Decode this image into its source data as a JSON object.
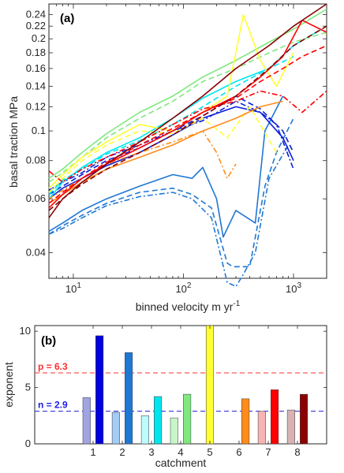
{
  "chart_data": [
    {
      "panel": "(a)",
      "type": "line",
      "xlabel": "binned velocity m yr",
      "xlabel_sup": "-1",
      "ylabel": "basal traction MPa",
      "x_scale": "log",
      "y_scale": "log",
      "xlim": [
        6,
        2000
      ],
      "ylim": [
        0.033,
        0.26
      ],
      "x_ticks": [
        10,
        100,
        1000
      ],
      "x_tick_labels": [
        {
          "base": "10",
          "exp": "1"
        },
        {
          "base": "10",
          "exp": "2"
        },
        {
          "base": "10",
          "exp": "3"
        }
      ],
      "y_ticks": [
        0.04,
        0.06,
        0.08,
        0.1,
        0.12,
        0.14,
        0.16,
        0.18,
        0.2,
        0.22,
        0.24
      ],
      "y_tick_labels": [
        "0.04",
        "0.06",
        "0.08",
        "0.1",
        "0.12",
        "0.14",
        "0.16",
        "0.18",
        "0.2",
        "0.22",
        "0.24"
      ],
      "grid": false,
      "series": [
        {
          "color": "#1f77d4",
          "style": "solid",
          "x": [
            6,
            8,
            12,
            20,
            40,
            80,
            120,
            150,
            200,
            230,
            300,
            450,
            550,
            800
          ],
          "y": [
            0.047,
            0.05,
            0.055,
            0.06,
            0.066,
            0.072,
            0.07,
            0.076,
            0.06,
            0.045,
            0.055,
            0.05,
            0.1,
            0.13
          ]
        },
        {
          "color": "#1f77d4",
          "style": "dashed",
          "x": [
            6,
            8,
            12,
            20,
            40,
            80,
            120,
            180,
            250,
            280,
            330,
            400,
            550,
            700,
            1000
          ],
          "y": [
            0.046,
            0.049,
            0.053,
            0.058,
            0.063,
            0.065,
            0.062,
            0.056,
            0.037,
            0.036,
            0.036,
            0.036,
            0.066,
            0.085,
            0.11
          ]
        },
        {
          "color": "#1f77d4",
          "style": "dashdot",
          "x": [
            6,
            8,
            12,
            20,
            40,
            80,
            120,
            180,
            250,
            300,
            350,
            450,
            600,
            900
          ],
          "y": [
            0.046,
            0.048,
            0.052,
            0.057,
            0.061,
            0.063,
            0.06,
            0.052,
            0.032,
            0.031,
            0.034,
            0.04,
            0.07,
            0.09
          ]
        },
        {
          "color": "#0a1fd9",
          "style": "solid",
          "x": [
            6,
            8,
            12,
            20,
            40,
            80,
            150,
            300,
            500,
            800,
            1000
          ],
          "y": [
            0.06,
            0.065,
            0.07,
            0.077,
            0.085,
            0.097,
            0.11,
            0.12,
            0.115,
            0.095,
            0.08
          ]
        },
        {
          "color": "#0a1fd9",
          "style": "dashed",
          "x": [
            6,
            8,
            12,
            20,
            40,
            80,
            150,
            300,
            500,
            800,
            1000
          ],
          "y": [
            0.062,
            0.066,
            0.072,
            0.08,
            0.088,
            0.1,
            0.112,
            0.13,
            0.118,
            0.1,
            0.085
          ]
        },
        {
          "color": "#0a1fd9",
          "style": "dashdot",
          "x": [
            6,
            8,
            12,
            20,
            40,
            80,
            150,
            300,
            500,
            700,
            1000
          ],
          "y": [
            0.064,
            0.068,
            0.073,
            0.082,
            0.09,
            0.1,
            0.108,
            0.125,
            0.115,
            0.105,
            0.075
          ]
        },
        {
          "color": "#00e5ee",
          "style": "solid",
          "x": [
            6,
            8,
            12,
            20,
            40,
            80,
            150,
            300,
            600,
            1000,
            1800
          ],
          "y": [
            0.06,
            0.068,
            0.076,
            0.085,
            0.095,
            0.11,
            0.128,
            0.145,
            0.16,
            0.19,
            0.215
          ]
        },
        {
          "color": "#00e5ee",
          "style": "dashed",
          "x": [
            6,
            8,
            12,
            20,
            40,
            80,
            150,
            300,
            600,
            1000
          ],
          "y": [
            0.062,
            0.069,
            0.075,
            0.084,
            0.093,
            0.105,
            0.12,
            0.14,
            0.16,
            0.175
          ]
        },
        {
          "color": "#7fe87f",
          "style": "solid",
          "x": [
            6,
            8,
            12,
            20,
            40,
            80,
            150,
            300,
            600,
            1000,
            2000
          ],
          "y": [
            0.07,
            0.075,
            0.085,
            0.098,
            0.115,
            0.13,
            0.15,
            0.17,
            0.195,
            0.215,
            0.25
          ]
        },
        {
          "color": "#7fe87f",
          "style": "dashed",
          "x": [
            6,
            8,
            12,
            20,
            40,
            80,
            150,
            300,
            600,
            1000,
            2000
          ],
          "y": [
            0.068,
            0.073,
            0.082,
            0.095,
            0.11,
            0.125,
            0.145,
            0.16,
            0.18,
            0.195,
            0.21
          ]
        },
        {
          "color": "#ffff33",
          "style": "solid",
          "x": [
            6,
            8,
            12,
            20,
            40,
            80,
            150,
            250,
            350,
            500,
            700,
            1000
          ],
          "y": [
            0.065,
            0.072,
            0.082,
            0.092,
            0.105,
            0.1,
            0.115,
            0.13,
            0.24,
            0.17,
            0.14,
            0.18
          ]
        },
        {
          "color": "#ffff33",
          "style": "dashed",
          "x": [
            6,
            8,
            12,
            20,
            40,
            80,
            150,
            250,
            400,
            700
          ],
          "y": [
            0.063,
            0.07,
            0.08,
            0.09,
            0.1,
            0.098,
            0.11,
            0.095,
            0.12,
            0.085
          ]
        },
        {
          "color": "#ff8c1a",
          "style": "solid",
          "x": [
            6,
            8,
            12,
            20,
            40,
            80,
            150,
            300,
            500,
            800
          ],
          "y": [
            0.058,
            0.062,
            0.068,
            0.075,
            0.082,
            0.09,
            0.1,
            0.11,
            0.12,
            0.125
          ]
        },
        {
          "color": "#ff8c1a",
          "style": "dashdot",
          "x": [
            6,
            8,
            12,
            20,
            40,
            80,
            150,
            200,
            250,
            300
          ],
          "y": [
            0.06,
            0.064,
            0.07,
            0.078,
            0.085,
            0.092,
            0.1,
            0.085,
            0.07,
            0.078
          ]
        },
        {
          "color": "#ff0000",
          "style": "solid",
          "x": [
            6,
            8,
            12,
            20,
            40,
            80,
            150,
            300,
            500,
            800,
            1200,
            2000
          ],
          "y": [
            0.056,
            0.062,
            0.07,
            0.078,
            0.088,
            0.1,
            0.115,
            0.13,
            0.15,
            0.175,
            0.23,
            0.21
          ]
        },
        {
          "color": "#ff0000",
          "style": "dashed",
          "x": [
            6,
            8,
            12,
            20,
            40,
            80,
            150,
            300,
            500,
            800,
            1200,
            2000
          ],
          "y": [
            0.058,
            0.063,
            0.07,
            0.079,
            0.09,
            0.102,
            0.115,
            0.128,
            0.145,
            0.16,
            0.175,
            0.19
          ]
        },
        {
          "color": "#ff0000",
          "style": "dashdot",
          "x": [
            6,
            8,
            12,
            20,
            40,
            80,
            150,
            300,
            500,
            800,
            1200,
            2000
          ],
          "y": [
            0.074,
            0.068,
            0.075,
            0.082,
            0.092,
            0.105,
            0.118,
            0.125,
            0.135,
            0.13,
            0.115,
            0.135
          ]
        },
        {
          "color": "#8b0000",
          "style": "solid",
          "x": [
            6,
            8,
            12,
            20,
            40,
            80,
            150,
            300,
            600,
            1000,
            2000
          ],
          "y": [
            0.052,
            0.06,
            0.068,
            0.078,
            0.092,
            0.11,
            0.13,
            0.16,
            0.19,
            0.22,
            0.26
          ]
        },
        {
          "color": "#8b0000",
          "style": "dashed",
          "x": [
            6,
            8,
            12,
            20,
            40,
            80,
            150,
            300,
            600,
            1000,
            2000
          ],
          "y": [
            0.055,
            0.06,
            0.067,
            0.075,
            0.085,
            0.097,
            0.112,
            0.13,
            0.16,
            0.19,
            0.22
          ]
        }
      ]
    },
    {
      "panel": "(b)",
      "type": "bar",
      "xlabel": "catchment",
      "ylabel": "exponent",
      "xlim": [
        -1,
        9
      ],
      "ylim": [
        0,
        10.5
      ],
      "x_ticks": [
        1,
        2,
        3,
        4,
        5,
        6,
        7,
        8
      ],
      "x_tick_labels": [
        "1",
        "2",
        "3",
        "4",
        "5",
        "6",
        "7",
        "8"
      ],
      "y_ticks": [
        0,
        5,
        10
      ],
      "y_tick_labels": [
        "0",
        "5",
        "10"
      ],
      "bar_width": 0.26,
      "bars": [
        {
          "x": 0.78,
          "value": 4.1,
          "color": "#9fa4e2"
        },
        {
          "x": 1.22,
          "value": 9.6,
          "color": "#0000dd"
        },
        {
          "x": 1.78,
          "value": 2.8,
          "color": "#a3cdf5"
        },
        {
          "x": 2.22,
          "value": 8.1,
          "color": "#1f77d4"
        },
        {
          "x": 2.78,
          "value": 2.5,
          "color": "#bdfbfd"
        },
        {
          "x": 3.22,
          "value": 4.2,
          "color": "#00e5ee"
        },
        {
          "x": 3.78,
          "value": 2.3,
          "color": "#c8f6c8"
        },
        {
          "x": 4.22,
          "value": 4.4,
          "color": "#7fe87f"
        },
        {
          "x": 5.0,
          "value": 10.5,
          "color": "#ffff33"
        },
        {
          "x": 6.22,
          "value": 4.0,
          "color": "#ff8c1a"
        },
        {
          "x": 6.78,
          "value": 2.9,
          "color": "#f7b4b4"
        },
        {
          "x": 7.22,
          "value": 4.8,
          "color": "#ff0000"
        },
        {
          "x": 7.78,
          "value": 3.0,
          "color": "#d7b3b3"
        },
        {
          "x": 8.22,
          "value": 4.4,
          "color": "#8b0000"
        }
      ],
      "reference_lines": [
        {
          "label": "p = 6.3",
          "value": 6.3,
          "color": "#ff2d2d"
        },
        {
          "label": "n = 2.9",
          "value": 2.9,
          "color": "#1d1de0"
        }
      ]
    }
  ]
}
